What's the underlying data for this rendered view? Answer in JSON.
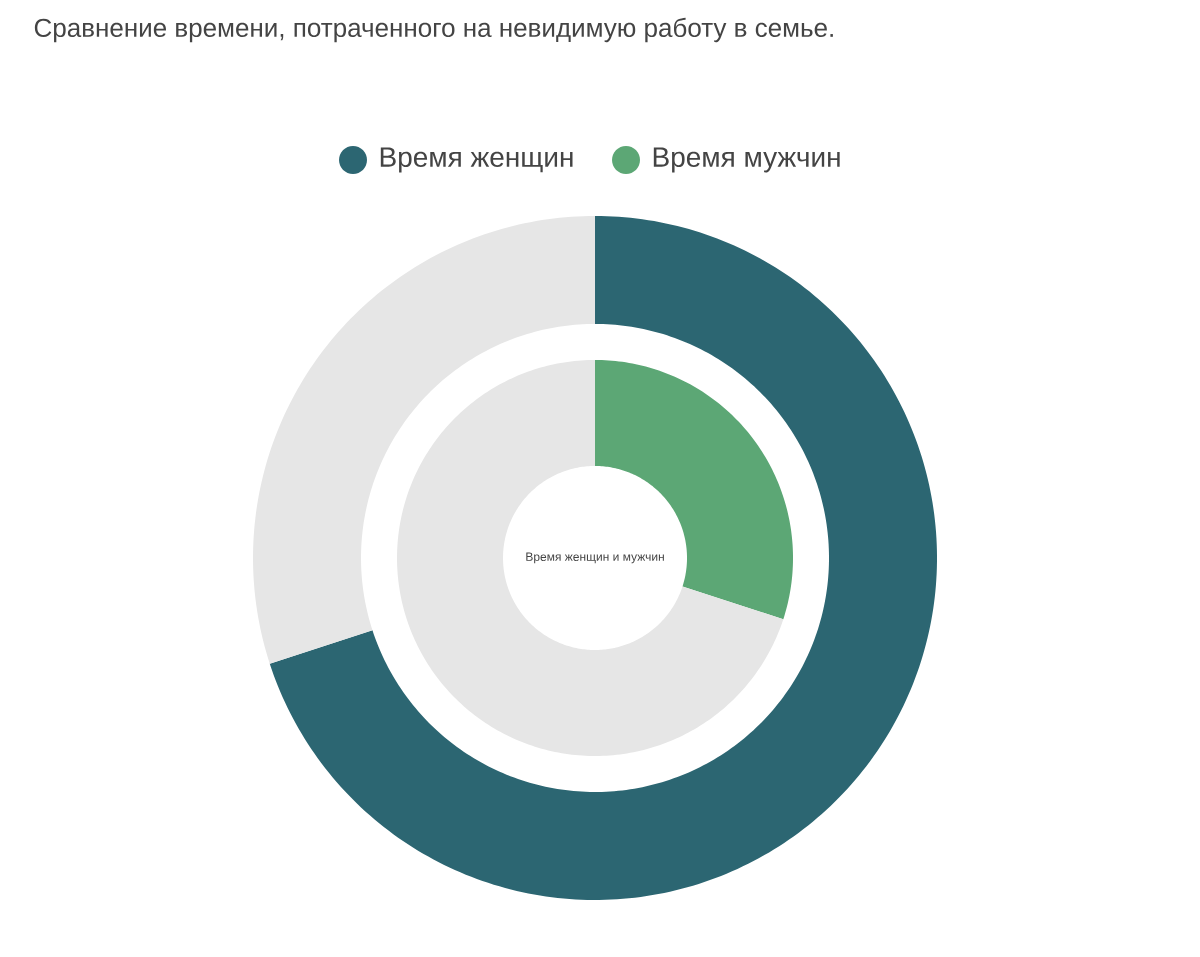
{
  "chart_data": {
    "type": "donut",
    "title": "Сравнение времени, потраченного на невидимую работу в семье.",
    "annotations": [
      "Время женщин и мужчин"
    ],
    "legend": "top",
    "series": [
      {
        "name": "Время женщин",
        "color": "#2c6672",
        "colors": [
          "#2c6672",
          "#e6e6e6"
        ],
        "values": [
          70,
          30
        ]
      },
      {
        "name": "Время мужчин",
        "color": "#5ca775",
        "colors": [
          "#5ca775",
          "#e6e6e6"
        ],
        "values": [
          30,
          70
        ]
      }
    ]
  }
}
